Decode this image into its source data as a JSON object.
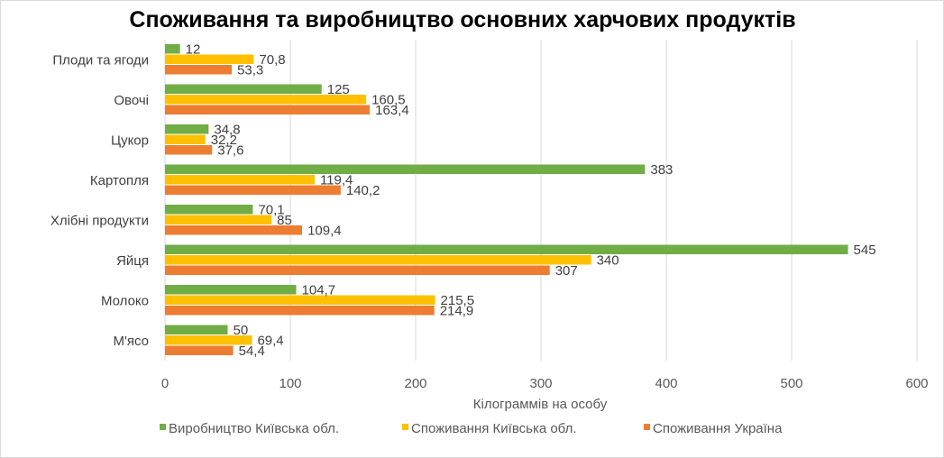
{
  "chart_data": {
    "type": "bar",
    "orientation": "horizontal",
    "title": "Споживання та виробництво основних харчових продуктів",
    "xlabel": "Кілограммів на особу",
    "xlim": [
      0,
      600
    ],
    "xticks": [
      0,
      100,
      200,
      300,
      400,
      500,
      600
    ],
    "grid": true,
    "legend_position": "bottom",
    "categories": [
      "Плоди та ягоди",
      "Овочі",
      "Цукор",
      "Картопля",
      "Хлібні продукти",
      "Яйця",
      "Молоко",
      "М'ясо"
    ],
    "series": [
      {
        "name": "Виробництво Київська обл.",
        "color": "#70ad47",
        "values": [
          12,
          125,
          34.8,
          383,
          70.1,
          545,
          104.7,
          50
        ],
        "labels": [
          "12",
          "125",
          "34,8",
          "383",
          "70,1",
          "545",
          "104,7",
          "50"
        ]
      },
      {
        "name": "Споживання Київська обл.",
        "color": "#ffc000",
        "values": [
          70.8,
          160.5,
          32.2,
          119.4,
          85,
          340,
          215.5,
          69.4
        ],
        "labels": [
          "70,8",
          "160,5",
          "32,2",
          "119,4",
          "85",
          "340",
          "215,5",
          "69,4"
        ]
      },
      {
        "name": "Споживання Україна",
        "color": "#ed7d31",
        "values": [
          53.3,
          163.4,
          37.6,
          140.2,
          109.4,
          307,
          214.9,
          54.4
        ],
        "labels": [
          "53,3",
          "163,4",
          "37,6",
          "140,2",
          "109,4",
          "307",
          "214,9",
          "54,4"
        ]
      }
    ]
  }
}
